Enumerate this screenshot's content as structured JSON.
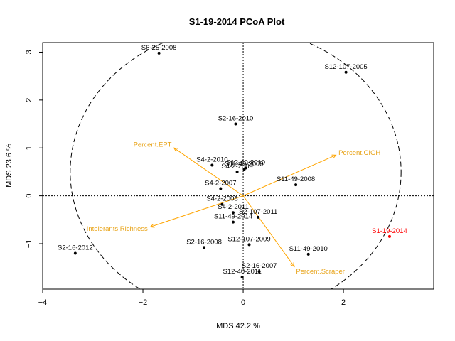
{
  "chart_data": {
    "type": "scatter",
    "title": "S1-19-2014 PCoA Plot",
    "xlabel": "MDS  42.2 %",
    "ylabel": "MDS  23.6 %",
    "xlim": [
      -4.0,
      3.8
    ],
    "ylim": [
      -1.95,
      3.2
    ],
    "xticks": [
      -4,
      -2,
      0,
      2
    ],
    "yticks": [
      -1,
      0,
      1,
      2,
      3
    ],
    "colors": {
      "points": "#000000",
      "highlight": "#FF0000",
      "vectors": "#FFA500",
      "vector_labels": "#E8A317",
      "ellipse": "#000000"
    },
    "ellipse": {
      "cx": -0.15,
      "cy": 0.5,
      "rx": 3.3,
      "ry": 3.0,
      "style": "dashed"
    },
    "points": [
      {
        "label": "S6-25-2008",
        "x": -1.68,
        "y": 2.98,
        "color": "#000000"
      },
      {
        "label": "S12-107-2005",
        "x": 2.05,
        "y": 2.58,
        "color": "#000000"
      },
      {
        "label": "S2-16-2010",
        "x": -0.15,
        "y": 1.5,
        "color": "#000000"
      },
      {
        "label": "S4-2-2010",
        "x": -0.62,
        "y": 0.64,
        "color": "#000000"
      },
      {
        "label": "S12-40-2010",
        "x": 0.05,
        "y": 0.58,
        "color": "#000000"
      },
      {
        "label": "S4-2-2009",
        "x": -0.12,
        "y": 0.5,
        "color": "#000000"
      },
      {
        "label": "S11-49-2009",
        "x": 0.02,
        "y": 0.55,
        "color": "#000000"
      },
      {
        "label": "S11-49-2008",
        "x": 1.05,
        "y": 0.23,
        "color": "#000000"
      },
      {
        "label": "S4-2-2007",
        "x": -0.45,
        "y": 0.15,
        "color": "#000000"
      },
      {
        "label": "S4-2-2008",
        "x": -0.42,
        "y": -0.18,
        "color": "#000000"
      },
      {
        "label": "S4-2-2011",
        "x": -0.2,
        "y": -0.35,
        "color": "#000000"
      },
      {
        "label": "S2-107-2011",
        "x": 0.3,
        "y": -0.45,
        "color": "#000000"
      },
      {
        "label": "S11-49-2014",
        "x": -0.2,
        "y": -0.55,
        "color": "#000000"
      },
      {
        "label": "S12-107-2009",
        "x": 0.12,
        "y": -1.02,
        "color": "#000000"
      },
      {
        "label": "S2-16-2008",
        "x": -0.78,
        "y": -1.08,
        "color": "#000000"
      },
      {
        "label": "S11-49-2010",
        "x": 1.3,
        "y": -1.22,
        "color": "#000000"
      },
      {
        "label": "S2-16-2012",
        "x": -3.35,
        "y": -1.2,
        "color": "#000000"
      },
      {
        "label": "S2-16-2007",
        "x": 0.32,
        "y": -1.58,
        "color": "#000000"
      },
      {
        "label": "S12-40-2011",
        "x": -0.02,
        "y": -1.7,
        "color": "#000000"
      },
      {
        "label": "S1-19-2014",
        "x": 2.92,
        "y": -0.85,
        "color": "#FF0000"
      }
    ],
    "vectors": [
      {
        "label": "Percent.EPT",
        "x": -1.38,
        "y": 1.0
      },
      {
        "label": "Percent.CIGH",
        "x": 1.85,
        "y": 0.85
      },
      {
        "label": "Intolerants.Richness",
        "x": -1.85,
        "y": -0.65
      },
      {
        "label": "Percent.Scraper",
        "x": 1.02,
        "y": -1.48
      }
    ]
  }
}
